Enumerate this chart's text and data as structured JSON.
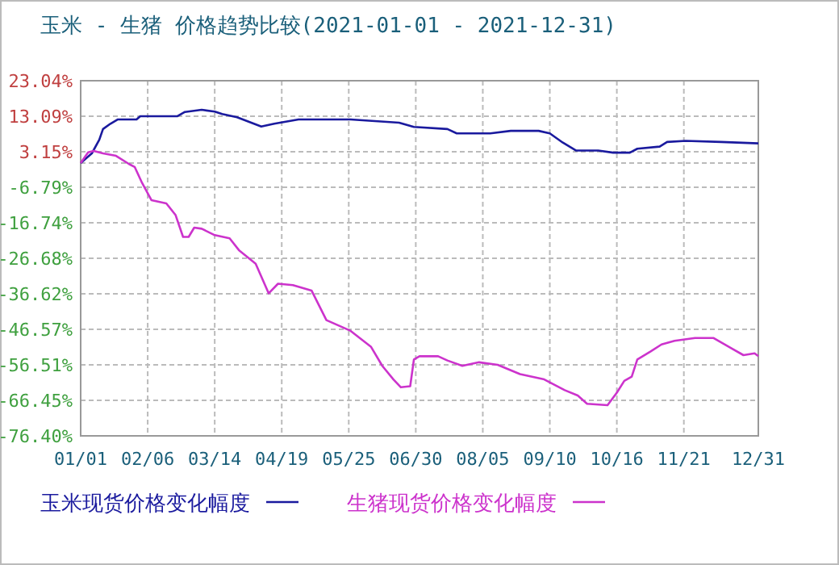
{
  "chart_data": {
    "type": "line",
    "title": "玉米 - 生猪 价格趋势比较(2021-01-01 - 2021-12-31)",
    "xlim": [
      "2021-01-01",
      "2021-12-31"
    ],
    "xticks": [
      {
        "value": "2021-01-01",
        "label": "01/01"
      },
      {
        "value": "2021-02-06",
        "label": "02/06"
      },
      {
        "value": "2021-03-14",
        "label": "03/14"
      },
      {
        "value": "2021-04-19",
        "label": "04/19"
      },
      {
        "value": "2021-05-25",
        "label": "05/25"
      },
      {
        "value": "2021-06-30",
        "label": "06/30"
      },
      {
        "value": "2021-08-05",
        "label": "08/05"
      },
      {
        "value": "2021-09-10",
        "label": "09/10"
      },
      {
        "value": "2021-10-16",
        "label": "10/16"
      },
      {
        "value": "2021-11-21",
        "label": "11/21"
      },
      {
        "value": "2021-12-31",
        "label": "12/31"
      }
    ],
    "ylim": [
      -76.4,
      23.04
    ],
    "yticks": [
      {
        "value": 23.04,
        "label": "23.04%"
      },
      {
        "value": 13.09,
        "label": "13.09%"
      },
      {
        "value": 3.15,
        "label": "3.15%"
      },
      {
        "value": 0,
        "label": null
      },
      {
        "value": -6.79,
        "label": "-6.79%"
      },
      {
        "value": -16.74,
        "label": "-16.74%"
      },
      {
        "value": -26.68,
        "label": "-26.68%"
      },
      {
        "value": -36.62,
        "label": "-36.62%"
      },
      {
        "value": -46.57,
        "label": "-46.57%"
      },
      {
        "value": -56.51,
        "label": "-56.51%"
      },
      {
        "value": -66.45,
        "label": "-66.45%"
      },
      {
        "value": -76.4,
        "label": "-76.40%"
      }
    ],
    "grid": true,
    "legend": "bottom",
    "line_style": "solid",
    "marker": "none",
    "series": [
      {
        "name": "玉米现货价格变化幅度",
        "color": "#1a1a9e",
        "x": [
          "2021-01-01",
          "2021-01-07",
          "2021-01-11",
          "2021-01-13",
          "2021-01-17",
          "2021-01-21",
          "2021-01-31",
          "2021-02-02",
          "2021-02-22",
          "2021-02-26",
          "2021-03-07",
          "2021-03-14",
          "2021-03-18",
          "2021-03-26",
          "2021-04-08",
          "2021-04-15",
          "2021-04-28",
          "2021-05-26",
          "2021-06-21",
          "2021-06-29",
          "2021-07-17",
          "2021-07-22",
          "2021-08-09",
          "2021-08-20",
          "2021-09-04",
          "2021-09-10",
          "2021-09-17",
          "2021-09-24",
          "2021-10-06",
          "2021-10-14",
          "2021-10-23",
          "2021-10-27",
          "2021-11-08",
          "2021-11-12",
          "2021-11-22",
          "2021-12-11",
          "2021-12-31"
        ],
        "values": [
          0,
          2.7,
          6.5,
          9.5,
          11,
          12.2,
          12.2,
          13.1,
          13.1,
          14.3,
          14.9,
          14.4,
          13.7,
          12.8,
          10.2,
          11,
          12.2,
          12.2,
          11.3,
          10.1,
          9.5,
          8.3,
          8.3,
          9,
          9,
          8.3,
          5.7,
          3.5,
          3.5,
          2.9,
          2.9,
          4,
          4.6,
          5.9,
          6.2,
          5.9,
          5.5
        ]
      },
      {
        "name": "生猪现货价格变化幅度",
        "color": "#cc33cc",
        "x": [
          "2021-01-01",
          "2021-01-05",
          "2021-01-08",
          "2021-01-13",
          "2021-01-20",
          "2021-01-27",
          "2021-01-30",
          "2021-02-03",
          "2021-02-08",
          "2021-02-16",
          "2021-02-21",
          "2021-02-25",
          "2021-02-28",
          "2021-03-03",
          "2021-03-07",
          "2021-03-14",
          "2021-03-22",
          "2021-03-27",
          "2021-04-05",
          "2021-04-12",
          "2021-04-17",
          "2021-04-25",
          "2021-05-05",
          "2021-05-13",
          "2021-05-26",
          "2021-06-06",
          "2021-06-12",
          "2021-06-18",
          "2021-06-22",
          "2021-06-27",
          "2021-06-29",
          "2021-07-02",
          "2021-07-12",
          "2021-07-17",
          "2021-07-25",
          "2021-08-03",
          "2021-08-13",
          "2021-08-25",
          "2021-09-07",
          "2021-09-18",
          "2021-09-25",
          "2021-09-30",
          "2021-10-11",
          "2021-10-16",
          "2021-10-20",
          "2021-10-24",
          "2021-10-27",
          "2021-11-03",
          "2021-11-09",
          "2021-11-16",
          "2021-11-27",
          "2021-12-07",
          "2021-12-17",
          "2021-12-23",
          "2021-12-29",
          "2021-12-31"
        ],
        "values": [
          0,
          3,
          3.4,
          2.7,
          2,
          -0.3,
          -1.1,
          -5.6,
          -10.4,
          -11.3,
          -14.6,
          -20.7,
          -20.7,
          -18.1,
          -18.4,
          -20.2,
          -21.1,
          -24.4,
          -28.2,
          -36.5,
          -33.8,
          -34.2,
          -35.7,
          -44,
          -47,
          -51.5,
          -56.8,
          -60.6,
          -62.8,
          -62.5,
          -55,
          -54.1,
          -54.1,
          -55.3,
          -56.8,
          -55.8,
          -56.5,
          -59.1,
          -60.6,
          -63.6,
          -65.1,
          -67.4,
          -67.8,
          -64.3,
          -61,
          -59.8,
          -55,
          -52.8,
          -50.8,
          -49.8,
          -49,
          -49,
          -52,
          -53.8,
          -53.3,
          -54.1
        ]
      }
    ]
  }
}
